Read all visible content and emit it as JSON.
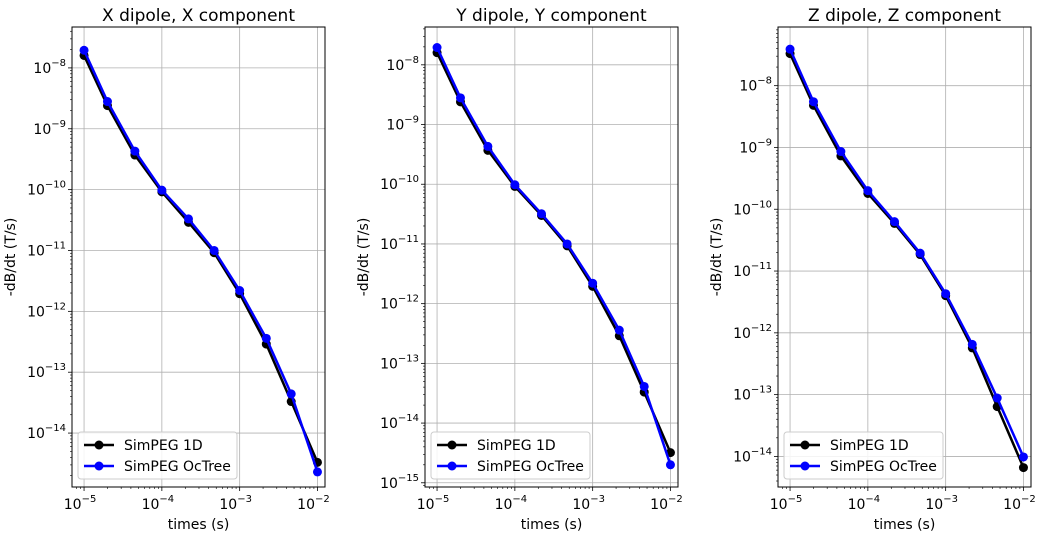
{
  "chart_data": [
    {
      "type": "line",
      "title": "X dipole, X component",
      "xlabel": "times (s)",
      "ylabel": "-dB/dt (T/s)",
      "xscale": "log",
      "yscale": "log",
      "xlim": [
        7e-06,
        0.0125
      ],
      "ylim": [
        1.3e-15,
        4.7e-08
      ],
      "xticks": [
        {
          "value": 1e-05,
          "label": "10",
          "exp": "−5"
        },
        {
          "value": 0.0001,
          "label": "10",
          "exp": "−4"
        },
        {
          "value": 0.001,
          "label": "10",
          "exp": "−3"
        },
        {
          "value": 0.01,
          "label": "10",
          "exp": "−2"
        }
      ],
      "yticks": [
        {
          "value": 1e-08,
          "label": "10",
          "exp": "−8"
        },
        {
          "value": 1e-09,
          "label": "10",
          "exp": "−9"
        },
        {
          "value": 1e-10,
          "label": "10",
          "exp": "−10"
        },
        {
          "value": 1e-11,
          "label": "10",
          "exp": "−11"
        },
        {
          "value": 1e-12,
          "label": "10",
          "exp": "−12"
        },
        {
          "value": 1e-13,
          "label": "10",
          "exp": "−13"
        },
        {
          "value": 1e-14,
          "label": "10",
          "exp": "−14"
        }
      ],
      "grid": true,
      "legend_position": "lower-left",
      "x": [
        1e-05,
        2e-05,
        4.5e-05,
        0.0001,
        0.00022,
        0.00047,
        0.001,
        0.0022,
        0.0046,
        0.01
      ],
      "series": [
        {
          "name": "SimPEG 1D",
          "color": "#000000",
          "values": [
            1.6e-08,
            2.4e-09,
            3.7e-10,
            9.2e-11,
            2.9e-11,
            9.2e-12,
            1.95e-12,
            2.9e-13,
            3.3e-14,
            3.3e-15
          ]
        },
        {
          "name": "SimPEG OcTree",
          "color": "#0000ff",
          "values": [
            1.95e-08,
            2.8e-09,
            4.3e-10,
            9.8e-11,
            3.3e-11,
            1e-11,
            2.2e-12,
            3.6e-13,
            4.4e-14,
            2.3e-15
          ]
        }
      ]
    },
    {
      "type": "line",
      "title": "Y dipole, Y component",
      "xlabel": "times (s)",
      "ylabel": "-dB/dt (T/s)",
      "xscale": "log",
      "yscale": "log",
      "xlim": [
        7e-06,
        0.0125
      ],
      "ylim": [
        8.5e-16,
        4.3e-08
      ],
      "xticks": [
        {
          "value": 1e-05,
          "label": "10",
          "exp": "−5"
        },
        {
          "value": 0.0001,
          "label": "10",
          "exp": "−4"
        },
        {
          "value": 0.001,
          "label": "10",
          "exp": "−3"
        },
        {
          "value": 0.01,
          "label": "10",
          "exp": "−2"
        }
      ],
      "yticks": [
        {
          "value": 1e-08,
          "label": "10",
          "exp": "−8"
        },
        {
          "value": 1e-09,
          "label": "10",
          "exp": "−9"
        },
        {
          "value": 1e-10,
          "label": "10",
          "exp": "−10"
        },
        {
          "value": 1e-11,
          "label": "10",
          "exp": "−11"
        },
        {
          "value": 1e-12,
          "label": "10",
          "exp": "−12"
        },
        {
          "value": 1e-13,
          "label": "10",
          "exp": "−13"
        },
        {
          "value": 1e-14,
          "label": "10",
          "exp": "−14"
        },
        {
          "value": 1e-15,
          "label": "10",
          "exp": "−15"
        }
      ],
      "grid": true,
      "legend_position": "lower-left",
      "x": [
        1e-05,
        2e-05,
        4.5e-05,
        0.0001,
        0.00022,
        0.00047,
        0.001,
        0.0022,
        0.0046,
        0.01
      ],
      "series": [
        {
          "name": "SimPEG 1D",
          "color": "#000000",
          "values": [
            1.6e-08,
            2.4e-09,
            3.7e-10,
            9.2e-11,
            3e-11,
            9.3e-12,
            1.95e-12,
            2.9e-13,
            3.3e-14,
            3.2e-15
          ]
        },
        {
          "name": "SimPEG OcTree",
          "color": "#0000ff",
          "values": [
            1.95e-08,
            2.8e-09,
            4.3e-10,
            9.8e-11,
            3.2e-11,
            1e-11,
            2.2e-12,
            3.6e-13,
            4.1e-14,
            2e-15
          ]
        }
      ]
    },
    {
      "type": "line",
      "title": "Z dipole, Z component",
      "xlabel": "times (s)",
      "ylabel": "-dB/dt (T/s)",
      "xscale": "log",
      "yscale": "log",
      "xlim": [
        7e-06,
        0.0125
      ],
      "ylim": [
        3.2e-15,
        8.9e-08
      ],
      "xticks": [
        {
          "value": 1e-05,
          "label": "10",
          "exp": "−5"
        },
        {
          "value": 0.0001,
          "label": "10",
          "exp": "−4"
        },
        {
          "value": 0.001,
          "label": "10",
          "exp": "−3"
        },
        {
          "value": 0.01,
          "label": "10",
          "exp": "−2"
        }
      ],
      "yticks": [
        {
          "value": 1e-08,
          "label": "10",
          "exp": "−8"
        },
        {
          "value": 1e-09,
          "label": "10",
          "exp": "−9"
        },
        {
          "value": 1e-10,
          "label": "10",
          "exp": "−10"
        },
        {
          "value": 1e-11,
          "label": "10",
          "exp": "−11"
        },
        {
          "value": 1e-12,
          "label": "10",
          "exp": "−12"
        },
        {
          "value": 1e-13,
          "label": "10",
          "exp": "−13"
        },
        {
          "value": 1e-14,
          "label": "10",
          "exp": "−14"
        }
      ],
      "grid": true,
      "legend_position": "lower-left",
      "x": [
        1e-05,
        2e-05,
        4.5e-05,
        0.0001,
        0.00022,
        0.00047,
        0.001,
        0.0022,
        0.0046,
        0.01
      ],
      "series": [
        {
          "name": "SimPEG 1D",
          "color": "#000000",
          "values": [
            3.3e-08,
            4.8e-09,
            7.3e-10,
            1.8e-10,
            5.9e-11,
            1.85e-11,
            4e-12,
            5.7e-13,
            6.4e-14,
            6.6e-15
          ]
        },
        {
          "name": "SimPEG OcTree",
          "color": "#0000ff",
          "values": [
            3.9e-08,
            5.5e-09,
            8.6e-10,
            2e-10,
            6.3e-11,
            1.95e-11,
            4.3e-12,
            6.5e-13,
            8.8e-14,
            9.8e-15
          ]
        }
      ]
    }
  ]
}
